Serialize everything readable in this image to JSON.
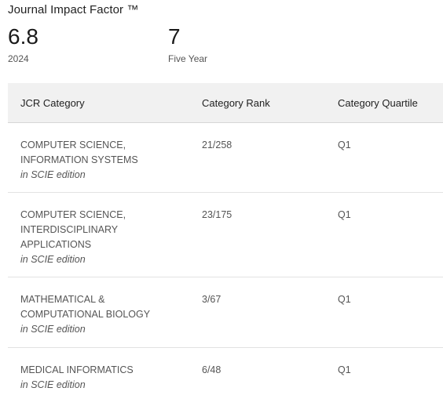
{
  "header": {
    "title": "Journal Impact Factor ™"
  },
  "metrics": {
    "jif": {
      "value": "6.8",
      "label": "2024"
    },
    "five_year": {
      "value": "7",
      "label": "Five Year"
    }
  },
  "table": {
    "columns": [
      "JCR Category",
      "Category Rank",
      "Category Quartile"
    ],
    "rows": [
      {
        "category": "COMPUTER SCIENCE,\nINFORMATION SYSTEMS",
        "edition": "in SCIE edition",
        "rank": "21/258",
        "quartile": "Q1"
      },
      {
        "category": "COMPUTER SCIENCE,\nINTERDISCIPLINARY\nAPPLICATIONS",
        "edition": "in SCIE edition",
        "rank": "23/175",
        "quartile": "Q1"
      },
      {
        "category": "MATHEMATICAL &\nCOMPUTATIONAL BIOLOGY",
        "edition": "in SCIE edition",
        "rank": "3/67",
        "quartile": "Q1"
      },
      {
        "category": "MEDICAL INFORMATICS",
        "edition": "in SCIE edition",
        "rank": "6/48",
        "quartile": "Q1"
      }
    ]
  }
}
